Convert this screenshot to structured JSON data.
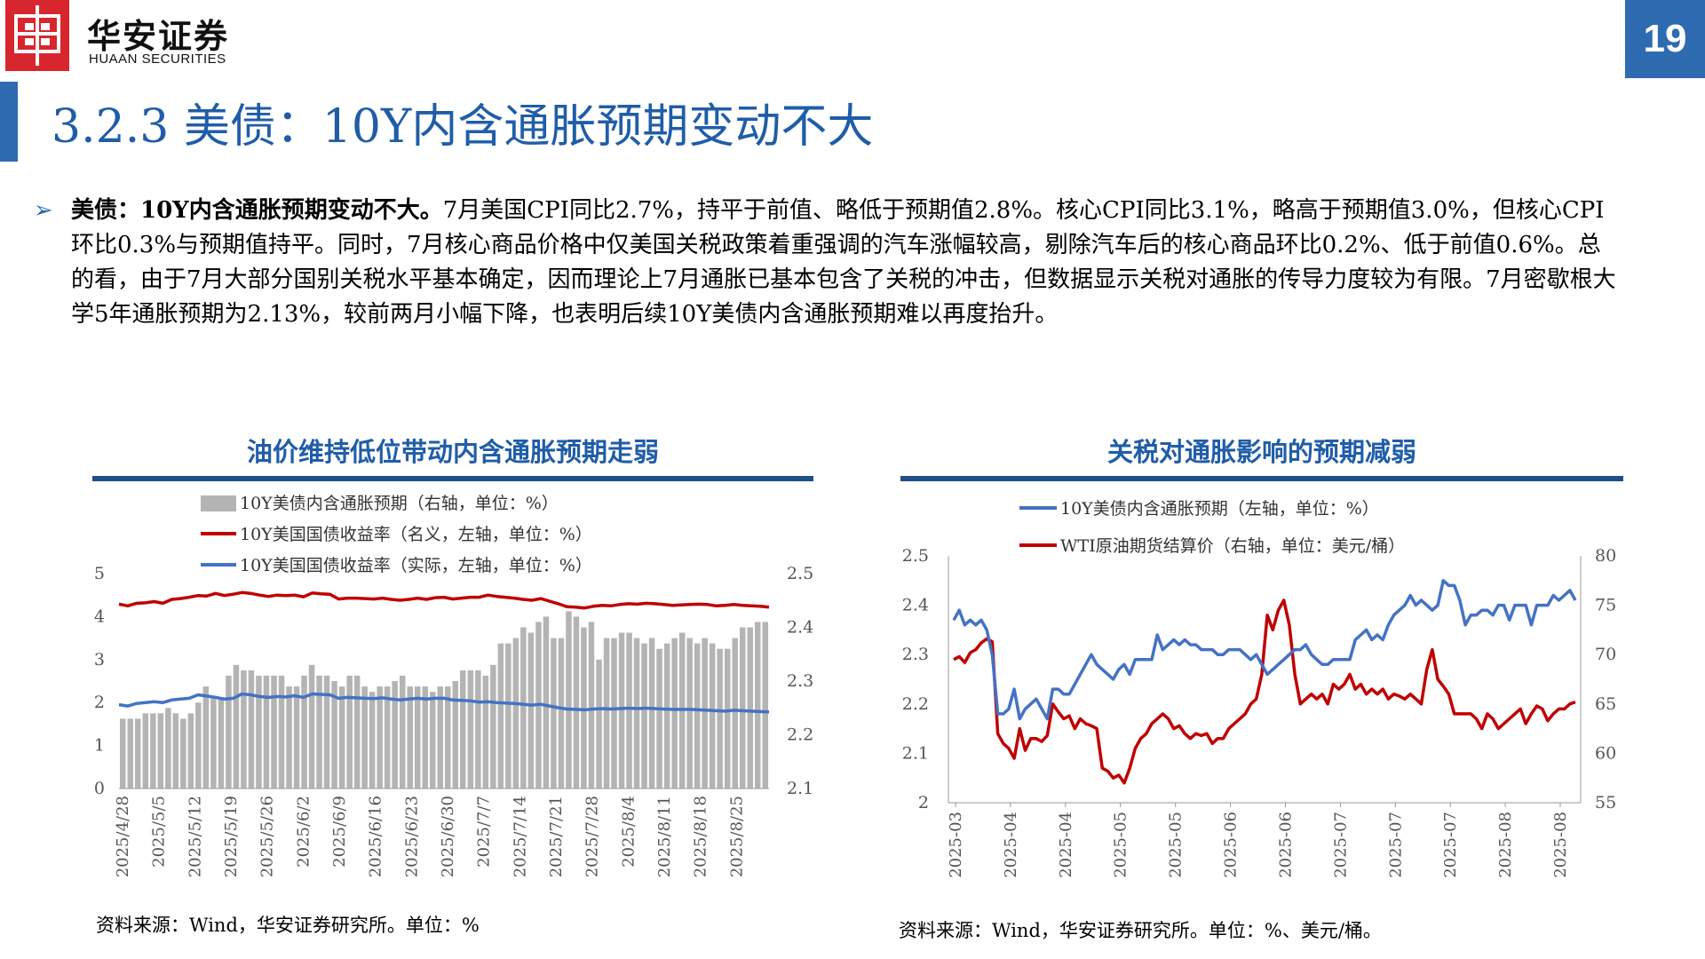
{
  "header": {
    "logo_cn": "华安证券",
    "logo_en": "HUAAN SECURITIES",
    "page_number": "19",
    "title": "3.2.3 美债：10Y内含通胀预期变动不大"
  },
  "body": {
    "bullet_icon": "chevron-right-icon",
    "lead": "美债：10Y内含通胀预期变动不大。",
    "text": "7月美国CPI同比2.7%，持平于前值、略低于预期值2.8%。核心CPI同比3.1%，略高于预期值3.0%，但核心CPI环比0.3%与预期值持平。同时，7月核心商品价格中仅美国关税政策着重强调的汽车涨幅较高，剔除汽车后的核心商品环比0.2%、低于前值0.6%。总的看，由于7月大部分国别关税水平基本确定，因而理论上7月通胀已基本包含了关税的冲击，但数据显示关税对通胀的传导力度较为有限。7月密歇根大学5年通胀预期为2.13%，较前两月小幅下降，也表明后续10Y美债内含通胀预期难以再度抬升。"
  },
  "left_panel": {
    "title": "油价维持低位带动内含通胀预期走弱",
    "source": "资料来源：Wind，华安证券研究所。单位：%"
  },
  "right_panel": {
    "title": "关税对通胀影响的预期减弱",
    "source": "资料来源：Wind，华安证券研究所。单位：%、美元/桶。"
  },
  "colors": {
    "red": "#c00000",
    "blue": "#4472c4",
    "gray": "#b4b4b4",
    "title_blue": "#1f5da8"
  },
  "chart_data": [
    {
      "type": "bar+line",
      "legend": [
        "10Y美债内含通胀预期（右轴，单位：%）",
        "10Y美国国债收益率（名义，左轴，单位：%）",
        "10Y美国国债收益率（实际，左轴，单位：%）"
      ],
      "x_ticks": [
        "2025/4/28",
        "2025/5/5",
        "2025/5/12",
        "2025/5/19",
        "2025/5/26",
        "2025/6/2",
        "2025/6/9",
        "2025/6/16",
        "2025/6/23",
        "2025/6/30",
        "2025/7/7",
        "2025/7/14",
        "2025/7/21",
        "2025/7/28",
        "2025/8/4",
        "2025/8/11",
        "2025/8/18",
        "2025/8/25"
      ],
      "left_axis": {
        "min": 0,
        "max": 5,
        "ticks": [
          0,
          1,
          2,
          3,
          4,
          5
        ]
      },
      "right_axis": {
        "min": 2.1,
        "max": 2.5,
        "ticks": [
          2.1,
          2.2,
          2.3,
          2.4,
          2.5
        ]
      },
      "series": [
        {
          "name": "10Y美债内含通胀预期（右轴，单位：%）",
          "kind": "bar",
          "axis": "right",
          "values": [
            2.23,
            2.23,
            2.23,
            2.24,
            2.24,
            2.24,
            2.25,
            2.24,
            2.23,
            2.24,
            2.26,
            2.29,
            2.27,
            2.27,
            2.31,
            2.33,
            2.32,
            2.32,
            2.31,
            2.31,
            2.31,
            2.31,
            2.29,
            2.29,
            2.31,
            2.33,
            2.31,
            2.31,
            2.3,
            2.29,
            2.31,
            2.31,
            2.29,
            2.28,
            2.29,
            2.29,
            2.3,
            2.31,
            2.29,
            2.29,
            2.29,
            2.28,
            2.29,
            2.29,
            2.3,
            2.32,
            2.32,
            2.32,
            2.31,
            2.33,
            2.37,
            2.37,
            2.38,
            2.4,
            2.39,
            2.41,
            2.42,
            2.38,
            2.38,
            2.43,
            2.42,
            2.4,
            2.41,
            2.34,
            2.38,
            2.38,
            2.39,
            2.39,
            2.38,
            2.37,
            2.38,
            2.36,
            2.37,
            2.38,
            2.39,
            2.38,
            2.37,
            2.38,
            2.37,
            2.36,
            2.36,
            2.38,
            2.4,
            2.4,
            2.41,
            2.41
          ]
        },
        {
          "name": "10Y美国国债收益率（名义，左轴，单位：%）",
          "kind": "line",
          "axis": "left",
          "values": [
            4.29,
            4.25,
            4.31,
            4.32,
            4.35,
            4.31,
            4.4,
            4.42,
            4.45,
            4.49,
            4.48,
            4.54,
            4.49,
            4.52,
            4.56,
            4.54,
            4.5,
            4.47,
            4.5,
            4.49,
            4.5,
            4.46,
            4.55,
            4.53,
            4.52,
            4.41,
            4.43,
            4.43,
            4.42,
            4.41,
            4.43,
            4.4,
            4.38,
            4.4,
            4.43,
            4.4,
            4.44,
            4.45,
            4.41,
            4.43,
            4.45,
            4.45,
            4.5,
            4.47,
            4.45,
            4.43,
            4.4,
            4.38,
            4.42,
            4.36,
            4.3,
            4.23,
            4.22,
            4.2,
            4.24,
            4.26,
            4.25,
            4.28,
            4.3,
            4.29,
            4.31,
            4.3,
            4.28,
            4.26,
            4.27,
            4.28,
            4.29,
            4.28,
            4.25,
            4.26,
            4.28,
            4.26,
            4.25,
            4.24,
            4.22
          ]
        },
        {
          "name": "10Y美国国债收益率（实际，左轴，单位：%）",
          "kind": "line",
          "axis": "left",
          "values": [
            1.95,
            1.92,
            1.98,
            2.0,
            2.02,
            2.0,
            2.06,
            2.08,
            2.1,
            2.18,
            2.15,
            2.12,
            2.08,
            2.1,
            2.2,
            2.18,
            2.14,
            2.12,
            2.14,
            2.13,
            2.16,
            2.12,
            2.2,
            2.19,
            2.18,
            2.1,
            2.12,
            2.11,
            2.1,
            2.09,
            2.11,
            2.08,
            2.06,
            2.08,
            2.1,
            2.08,
            2.1,
            2.1,
            2.06,
            2.05,
            2.04,
            2.01,
            2.02,
            2.0,
            1.99,
            1.98,
            1.96,
            1.94,
            1.96,
            1.92,
            1.88,
            1.85,
            1.84,
            1.83,
            1.85,
            1.86,
            1.85,
            1.86,
            1.87,
            1.86,
            1.87,
            1.86,
            1.85,
            1.84,
            1.84,
            1.84,
            1.83,
            1.82,
            1.81,
            1.8,
            1.82,
            1.81,
            1.8,
            1.79,
            1.78
          ]
        }
      ]
    },
    {
      "type": "line",
      "legend": [
        "10Y美债内含通胀预期（左轴，单位：%）",
        "WTI原油期货结算价（右轴，单位：美元/桶）"
      ],
      "x_ticks": [
        "2025-03",
        "2025-04",
        "2025-04",
        "2025-05",
        "2025-05",
        "2025-06",
        "2025-06",
        "2025-07",
        "2025-07",
        "2025-07",
        "2025-08",
        "2025-08"
      ],
      "left_axis": {
        "min": 2,
        "max": 2.5,
        "ticks": [
          2,
          2.1,
          2.2,
          2.3,
          2.4,
          2.5
        ]
      },
      "right_axis": {
        "min": 55,
        "max": 80,
        "ticks": [
          55,
          60,
          65,
          70,
          75,
          80
        ]
      },
      "series": [
        {
          "name": "10Y美债内含通胀预期（左轴，单位：%）",
          "axis": "left",
          "values": [
            2.37,
            2.39,
            2.36,
            2.37,
            2.36,
            2.37,
            2.35,
            2.3,
            2.18,
            2.18,
            2.19,
            2.23,
            2.17,
            2.19,
            2.2,
            2.21,
            2.19,
            2.17,
            2.23,
            2.23,
            2.22,
            2.22,
            2.24,
            2.26,
            2.28,
            2.3,
            2.28,
            2.27,
            2.26,
            2.25,
            2.27,
            2.28,
            2.26,
            2.29,
            2.29,
            2.29,
            2.29,
            2.34,
            2.31,
            2.32,
            2.33,
            2.32,
            2.33,
            2.32,
            2.32,
            2.31,
            2.31,
            2.31,
            2.3,
            2.3,
            2.31,
            2.31,
            2.31,
            2.3,
            2.29,
            2.3,
            2.28,
            2.26,
            2.27,
            2.28,
            2.29,
            2.3,
            2.31,
            2.31,
            2.32,
            2.3,
            2.29,
            2.28,
            2.28,
            2.29,
            2.29,
            2.29,
            2.29,
            2.33,
            2.34,
            2.35,
            2.33,
            2.34,
            2.33,
            2.36,
            2.38,
            2.39,
            2.4,
            2.42,
            2.4,
            2.41,
            2.4,
            2.39,
            2.4,
            2.45,
            2.44,
            2.44,
            2.41,
            2.36,
            2.38,
            2.38,
            2.39,
            2.39,
            2.38,
            2.4,
            2.4,
            2.37,
            2.4,
            2.4,
            2.4,
            2.36,
            2.4,
            2.4,
            2.4,
            2.42,
            2.41,
            2.42,
            2.43,
            2.41
          ]
        },
        {
          "name": "WTI原油期货结算价（右轴，单位：美元/桶）",
          "axis": "right",
          "values": [
            69.5,
            69.8,
            69.2,
            70.2,
            70.5,
            71.2,
            71.6,
            71.3,
            62.0,
            61.0,
            60.5,
            59.5,
            62.5,
            60.3,
            61.5,
            61.5,
            61.2,
            61.8,
            65.0,
            64.2,
            63.5,
            63.8,
            62.5,
            63.5,
            63.0,
            62.8,
            62.5,
            58.5,
            58.2,
            57.5,
            57.8,
            57.0,
            58.5,
            60.5,
            61.5,
            62.0,
            63.0,
            63.5,
            64.0,
            63.5,
            62.5,
            62.8,
            62.0,
            61.5,
            62.0,
            61.8,
            62.0,
            61.0,
            61.5,
            61.5,
            62.5,
            63.0,
            63.5,
            64.0,
            65.0,
            65.5,
            68.0,
            74.0,
            72.5,
            74.5,
            75.5,
            73.0,
            68.0,
            65.0,
            65.5,
            66.0,
            65.5,
            66.0,
            65.0,
            67.0,
            66.5,
            67.0,
            68.0,
            66.5,
            67.0,
            66.0,
            66.5,
            66.0,
            66.5,
            65.5,
            66.0,
            65.8,
            65.5,
            66.0,
            65.5,
            65.0,
            68.5,
            70.5,
            67.5,
            66.8,
            66.0,
            64.0,
            64.0,
            64.0,
            64.0,
            63.5,
            62.5,
            64.0,
            63.5,
            62.5,
            63.0,
            63.5,
            64.0,
            64.5,
            63.0,
            64.0,
            64.8,
            64.5,
            63.3,
            64.0,
            64.5,
            64.5,
            65.0,
            65.2
          ]
        }
      ]
    }
  ]
}
